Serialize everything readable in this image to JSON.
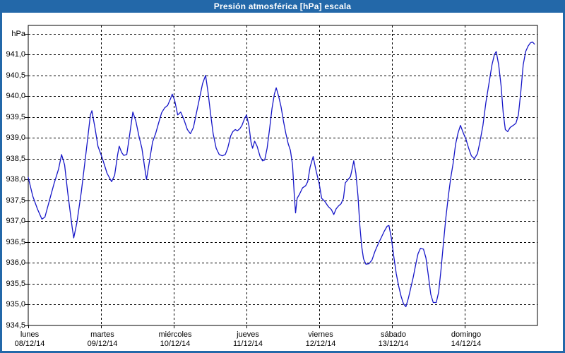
{
  "window": {
    "title": "Presión atmosférica [hPa] escala"
  },
  "colors": {
    "titlebar": "#2368a9",
    "window_border": "#2368a9",
    "axis": "#000000",
    "grid": "#000000",
    "line": "#1616c8",
    "text": "#000000"
  },
  "chart_data": {
    "type": "line",
    "title": "Presión atmosférica [hPa] escala",
    "ylabel": "hPa",
    "xlabel": "",
    "grid": "dashed",
    "legend": "none",
    "ylim": [
      934.5,
      941.5
    ],
    "y_axis": {
      "min": 934.5,
      "max": 941.5,
      "step": 0.5,
      "ticks": [
        {
          "value": 941.5,
          "label": "hPa"
        },
        {
          "value": 941.0,
          "label": "941,0"
        },
        {
          "value": 940.5,
          "label": "940,5"
        },
        {
          "value": 940.0,
          "label": "940,0"
        },
        {
          "value": 939.5,
          "label": "939,5"
        },
        {
          "value": 939.0,
          "label": "939,0"
        },
        {
          "value": 938.5,
          "label": "938,5"
        },
        {
          "value": 938.0,
          "label": "938,0"
        },
        {
          "value": 937.5,
          "label": "937,5"
        },
        {
          "value": 937.0,
          "label": "937,0"
        },
        {
          "value": 936.5,
          "label": "936,5"
        },
        {
          "value": 936.0,
          "label": "936,0"
        },
        {
          "value": 935.5,
          "label": "935,5"
        },
        {
          "value": 935.0,
          "label": "935,0"
        },
        {
          "value": 934.5,
          "label": "934,5"
        }
      ]
    },
    "x_axis": {
      "unit": "hours",
      "hours_total": 168,
      "days": [
        {
          "name": "lunes",
          "date": "08/12/14"
        },
        {
          "name": "martes",
          "date": "09/12/14"
        },
        {
          "name": "miércoles",
          "date": "10/12/14"
        },
        {
          "name": "jueves",
          "date": "11/12/14"
        },
        {
          "name": "viernes",
          "date": "12/12/14"
        },
        {
          "name": "sábado",
          "date": "13/12/14"
        },
        {
          "name": "domingo",
          "date": "14/12/14"
        }
      ]
    },
    "series": [
      {
        "name": "Presión atmosférica [hPa]",
        "points": [
          [
            0,
            938.05
          ],
          [
            1.5,
            937.6
          ],
          [
            3,
            937.3
          ],
          [
            4.5,
            937.05
          ],
          [
            5.5,
            937.1
          ],
          [
            7,
            937.5
          ],
          [
            8.5,
            937.9
          ],
          [
            10,
            938.25
          ],
          [
            11,
            938.6
          ],
          [
            12,
            938.35
          ],
          [
            13,
            937.7
          ],
          [
            14.5,
            936.85
          ],
          [
            15,
            936.6
          ],
          [
            16,
            936.95
          ],
          [
            17.5,
            937.7
          ],
          [
            19,
            938.6
          ],
          [
            20.5,
            939.55
          ],
          [
            21,
            939.65
          ],
          [
            22,
            939.25
          ],
          [
            23,
            938.8
          ],
          [
            24.5,
            938.5
          ],
          [
            26,
            938.15
          ],
          [
            27.5,
            937.95
          ],
          [
            28.5,
            938.1
          ],
          [
            29.5,
            938.6
          ],
          [
            30,
            938.8
          ],
          [
            30.8,
            938.65
          ],
          [
            31.5,
            938.58
          ],
          [
            32.5,
            938.6
          ],
          [
            33.5,
            939.1
          ],
          [
            34.5,
            939.62
          ],
          [
            35.5,
            939.4
          ],
          [
            36.5,
            939.05
          ],
          [
            37.5,
            938.75
          ],
          [
            38.5,
            938.25
          ],
          [
            39,
            938.0
          ],
          [
            40,
            938.45
          ],
          [
            41,
            938.9
          ],
          [
            42,
            939.1
          ],
          [
            43,
            939.35
          ],
          [
            44,
            939.6
          ],
          [
            45,
            939.72
          ],
          [
            46,
            939.78
          ],
          [
            47,
            939.95
          ],
          [
            47.5,
            940.05
          ],
          [
            48.3,
            939.9
          ],
          [
            49.3,
            939.55
          ],
          [
            50.3,
            939.62
          ],
          [
            51.3,
            939.45
          ],
          [
            52.5,
            939.2
          ],
          [
            53.5,
            939.1
          ],
          [
            54.5,
            939.25
          ],
          [
            55.5,
            939.6
          ],
          [
            56.5,
            939.95
          ],
          [
            57.5,
            940.3
          ],
          [
            58.5,
            940.5
          ],
          [
            59.3,
            940.1
          ],
          [
            60.2,
            939.55
          ],
          [
            61,
            939.1
          ],
          [
            62,
            938.75
          ],
          [
            63,
            938.6
          ],
          [
            64,
            938.57
          ],
          [
            65,
            938.6
          ],
          [
            65.8,
            938.75
          ],
          [
            66.8,
            939.05
          ],
          [
            67.5,
            939.15
          ],
          [
            68.3,
            939.2
          ],
          [
            69,
            939.17
          ],
          [
            69.8,
            939.22
          ],
          [
            70.5,
            939.3
          ],
          [
            71.3,
            939.45
          ],
          [
            72,
            939.55
          ],
          [
            72.8,
            939.3
          ],
          [
            73.5,
            938.9
          ],
          [
            74,
            938.75
          ],
          [
            74.7,
            938.92
          ],
          [
            75.5,
            938.8
          ],
          [
            76.5,
            938.55
          ],
          [
            77.3,
            938.45
          ],
          [
            78,
            938.47
          ],
          [
            78.8,
            938.75
          ],
          [
            79.6,
            939.2
          ],
          [
            80.4,
            939.7
          ],
          [
            81.2,
            940.05
          ],
          [
            81.8,
            940.2
          ],
          [
            82.6,
            940.0
          ],
          [
            83.4,
            939.75
          ],
          [
            84.2,
            939.4
          ],
          [
            85,
            939.1
          ],
          [
            85.8,
            938.85
          ],
          [
            86.5,
            938.7
          ],
          [
            87.2,
            938.35
          ],
          [
            87.8,
            937.6
          ],
          [
            88.2,
            937.2
          ],
          [
            88.7,
            937.55
          ],
          [
            89.5,
            937.65
          ],
          [
            90.5,
            937.8
          ],
          [
            91.5,
            937.85
          ],
          [
            92.2,
            937.95
          ],
          [
            93,
            938.3
          ],
          [
            94,
            938.55
          ],
          [
            95,
            938.2
          ],
          [
            96,
            937.9
          ],
          [
            96.8,
            937.55
          ],
          [
            97.8,
            937.48
          ],
          [
            99,
            937.35
          ],
          [
            100,
            937.28
          ],
          [
            100.8,
            937.16
          ],
          [
            101.6,
            937.3
          ],
          [
            102.4,
            937.37
          ],
          [
            103.2,
            937.42
          ],
          [
            104,
            937.55
          ],
          [
            104.6,
            937.92
          ],
          [
            105.5,
            938.0
          ],
          [
            106.3,
            938.07
          ],
          [
            107,
            938.3
          ],
          [
            107.4,
            938.45
          ],
          [
            108.1,
            938.15
          ],
          [
            108.8,
            937.6
          ],
          [
            109.4,
            936.9
          ],
          [
            110,
            936.4
          ],
          [
            110.6,
            936.1
          ],
          [
            111.4,
            935.97
          ],
          [
            112.4,
            935.98
          ],
          [
            113.4,
            936.07
          ],
          [
            114.4,
            936.28
          ],
          [
            115.4,
            936.45
          ],
          [
            116.4,
            936.6
          ],
          [
            117.4,
            936.75
          ],
          [
            118.4,
            936.88
          ],
          [
            119,
            936.9
          ],
          [
            119.8,
            936.6
          ],
          [
            120.6,
            936.15
          ],
          [
            121.4,
            935.75
          ],
          [
            122.2,
            935.45
          ],
          [
            123,
            935.2
          ],
          [
            123.8,
            935.02
          ],
          [
            124.6,
            934.95
          ],
          [
            125.4,
            935.15
          ],
          [
            126.2,
            935.4
          ],
          [
            127,
            935.65
          ],
          [
            127.8,
            935.95
          ],
          [
            128.6,
            936.22
          ],
          [
            129.4,
            936.35
          ],
          [
            130.4,
            936.33
          ],
          [
            131.2,
            936.12
          ],
          [
            132,
            935.7
          ],
          [
            132.8,
            935.25
          ],
          [
            133.6,
            935.05
          ],
          [
            134.6,
            935.05
          ],
          [
            135.4,
            935.3
          ],
          [
            136.2,
            935.85
          ],
          [
            137,
            936.5
          ],
          [
            137.8,
            937.1
          ],
          [
            138.6,
            937.6
          ],
          [
            139.4,
            938.05
          ],
          [
            140.2,
            938.4
          ],
          [
            141,
            938.85
          ],
          [
            141.8,
            939.12
          ],
          [
            142.6,
            939.3
          ],
          [
            143.5,
            939.12
          ],
          [
            144.4,
            938.97
          ],
          [
            145.3,
            938.75
          ],
          [
            146.2,
            938.57
          ],
          [
            147.2,
            938.5
          ],
          [
            148.2,
            938.62
          ],
          [
            149,
            938.9
          ],
          [
            150,
            939.3
          ],
          [
            151,
            939.85
          ],
          [
            152,
            940.3
          ],
          [
            153,
            940.75
          ],
          [
            153.8,
            941.0
          ],
          [
            154.4,
            941.07
          ],
          [
            155.2,
            940.75
          ],
          [
            156,
            940.25
          ],
          [
            156.7,
            939.6
          ],
          [
            157.4,
            939.2
          ],
          [
            158.2,
            939.15
          ],
          [
            159,
            939.25
          ],
          [
            160,
            939.3
          ],
          [
            160.9,
            939.35
          ],
          [
            161.7,
            939.55
          ],
          [
            162.5,
            940.1
          ],
          [
            163.3,
            940.75
          ],
          [
            164.1,
            941.07
          ],
          [
            164.9,
            941.2
          ],
          [
            165.7,
            941.28
          ],
          [
            166.4,
            941.3
          ],
          [
            167,
            941.25
          ]
        ]
      }
    ]
  }
}
